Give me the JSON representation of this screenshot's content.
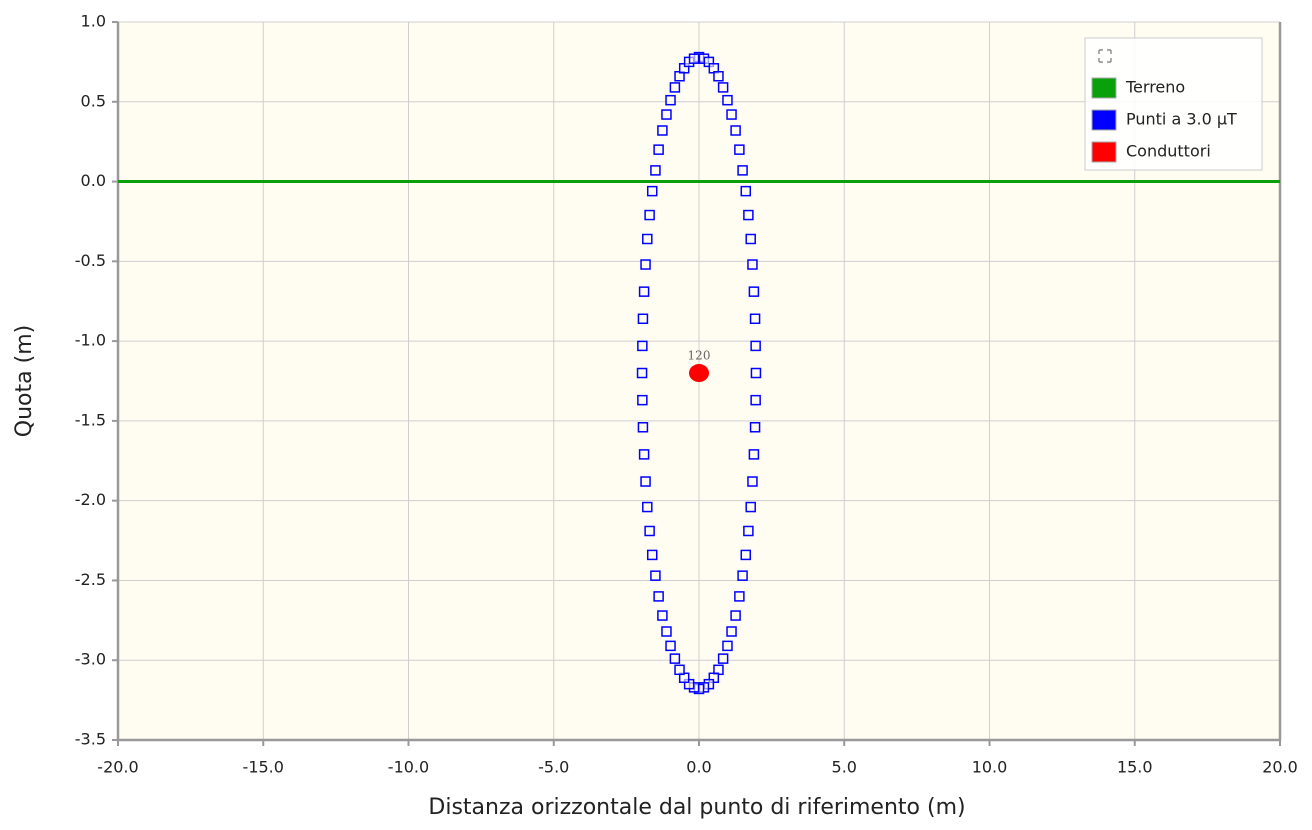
{
  "chart_data": {
    "type": "scatter",
    "xlabel": "Distanza orizzontale dal punto di riferimento (m)",
    "ylabel": "Quota (m)",
    "xlim": [
      -20,
      20
    ],
    "ylim": [
      -3.5,
      1.0
    ],
    "xticks": [
      {
        "value": -20,
        "label": "-20.0"
      },
      {
        "value": -15,
        "label": "-15.0"
      },
      {
        "value": -10,
        "label": "-10.0"
      },
      {
        "value": -5,
        "label": "-5.0"
      },
      {
        "value": 0,
        "label": "0.0"
      },
      {
        "value": 5,
        "label": "5.0"
      },
      {
        "value": 10,
        "label": "10.0"
      },
      {
        "value": 15,
        "label": "15.0"
      },
      {
        "value": 20,
        "label": "20.0"
      }
    ],
    "yticks": [
      {
        "value": 1.0,
        "label": "1.0"
      },
      {
        "value": 0.5,
        "label": "0.5"
      },
      {
        "value": 0,
        "label": "0.0"
      },
      {
        "value": -0.5,
        "label": "-0.5"
      },
      {
        "value": -1.0,
        "label": "-1.0"
      },
      {
        "value": -1.5,
        "label": "-1.5"
      },
      {
        "value": -2.0,
        "label": "-2.0"
      },
      {
        "value": -2.5,
        "label": "-2.5"
      },
      {
        "value": -3.0,
        "label": "-3.0"
      },
      {
        "value": -3.5,
        "label": "-3.5"
      }
    ],
    "grid": true,
    "legend": "top-right",
    "series": [
      {
        "name": "Terreno",
        "color": "#0aa00a",
        "marker": "line",
        "x": [
          -20,
          20
        ],
        "values": [
          0,
          0
        ]
      },
      {
        "name": "Punti a 3.0 μT",
        "color": "#0000ff",
        "marker": "square",
        "x": [
          0,
          0.17,
          0.34,
          0.51,
          0.67,
          0.83,
          0.98,
          1.12,
          1.26,
          1.39,
          1.5,
          1.61,
          1.7,
          1.78,
          1.84,
          1.89,
          1.93,
          1.95,
          1.96,
          1.95,
          1.93,
          1.89,
          1.84,
          1.78,
          1.7,
          1.61,
          1.5,
          1.39,
          1.26,
          1.12,
          0.98,
          0.83,
          0.67,
          0.51,
          0.34,
          0.17,
          0,
          -0.17,
          -0.34,
          -0.51,
          -0.67,
          -0.83,
          -0.98,
          -1.12,
          -1.26,
          -1.39,
          -1.5,
          -1.61,
          -1.7,
          -1.78,
          -1.84,
          -1.89,
          -1.93,
          -1.95,
          -1.96,
          -1.95,
          -1.93,
          -1.89,
          -1.84,
          -1.78,
          -1.7,
          -1.61,
          -1.5,
          -1.39,
          -1.26,
          -1.12,
          -0.98,
          -0.83,
          -0.67,
          -0.51,
          -0.34,
          -0.17
        ],
        "values": [
          0.78,
          0.77,
          0.75,
          0.71,
          0.66,
          0.59,
          0.51,
          0.42,
          0.32,
          0.2,
          0.07,
          -0.06,
          -0.21,
          -0.36,
          -0.52,
          -0.69,
          -0.86,
          -1.03,
          -1.2,
          -1.37,
          -1.54,
          -1.71,
          -1.88,
          -2.04,
          -2.19,
          -2.34,
          -2.47,
          -2.6,
          -2.72,
          -2.82,
          -2.91,
          -2.99,
          -3.06,
          -3.11,
          -3.15,
          -3.17,
          -3.18,
          -3.17,
          -3.15,
          -3.11,
          -3.06,
          -2.99,
          -2.91,
          -2.82,
          -2.72,
          -2.6,
          -2.47,
          -2.34,
          -2.19,
          -2.04,
          -1.88,
          -1.71,
          -1.54,
          -1.37,
          -1.2,
          -1.03,
          -0.86,
          -0.69,
          -0.52,
          -0.36,
          -0.21,
          -0.06,
          0.07,
          0.2,
          0.32,
          0.42,
          0.51,
          0.59,
          0.66,
          0.71,
          0.75,
          0.77
        ]
      },
      {
        "name": "Conduttori",
        "color": "#ff0000",
        "marker": "circle",
        "x": [
          0
        ],
        "values": [
          -1.2
        ],
        "point_labels": [
          "120"
        ]
      }
    ]
  }
}
